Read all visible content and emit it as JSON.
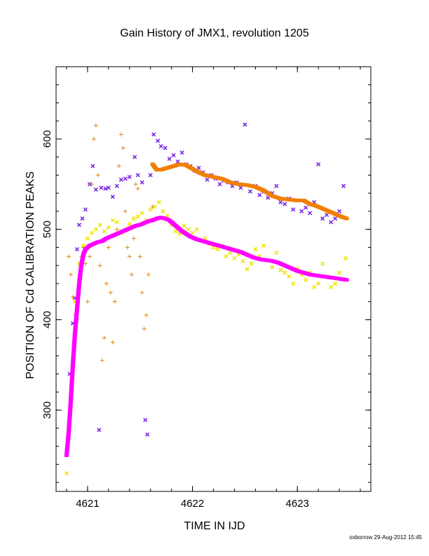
{
  "chart_data": {
    "type": "scatter",
    "title": "Gain History of JMX1, revolution 1205",
    "xlabel": "TIME IN IJD",
    "ylabel": "POSITION OF Cd CALIBRATION PEAKS",
    "xlim": [
      4620.7,
      4623.7
    ],
    "ylim": [
      210,
      680
    ],
    "xticks": [
      4621,
      4622,
      4623
    ],
    "yticks": [
      300,
      400,
      500,
      600
    ],
    "grid": false,
    "legend": "none",
    "colors": {
      "purple": "#7a2be2",
      "orange": "#f07f00",
      "orange_cross": "#e08a10",
      "yellow": "#f0e600",
      "magenta": "#ff00ff"
    },
    "series": [
      {
        "color": "purple",
        "marker": "x",
        "points": [
          [
            4620.83,
            340
          ],
          [
            4620.86,
            396
          ],
          [
            4620.88,
            424
          ],
          [
            4620.9,
            478
          ],
          [
            4620.92,
            505
          ],
          [
            4620.95,
            512
          ],
          [
            4620.98,
            522
          ],
          [
            4621.02,
            550
          ],
          [
            4621.05,
            570
          ],
          [
            4621.08,
            544
          ],
          [
            4621.11,
            278
          ],
          [
            4621.13,
            546
          ],
          [
            4621.17,
            545
          ],
          [
            4621.2,
            546
          ],
          [
            4621.24,
            536
          ],
          [
            4621.28,
            548
          ],
          [
            4621.32,
            555
          ],
          [
            4621.36,
            556
          ],
          [
            4621.4,
            558
          ],
          [
            4621.45,
            580
          ],
          [
            4621.48,
            560
          ],
          [
            4621.52,
            552
          ],
          [
            4621.55,
            289
          ],
          [
            4621.57,
            273
          ],
          [
            4621.6,
            560
          ],
          [
            4621.63,
            605
          ],
          [
            4621.67,
            598
          ],
          [
            4621.7,
            592
          ],
          [
            4621.74,
            590
          ],
          [
            4621.78,
            578
          ],
          [
            4621.82,
            582
          ],
          [
            4621.86,
            575
          ],
          [
            4621.9,
            585
          ],
          [
            4621.94,
            572
          ],
          [
            4621.98,
            570
          ],
          [
            4622.02,
            565
          ],
          [
            4622.06,
            568
          ],
          [
            4622.1,
            563
          ],
          [
            4622.14,
            555
          ],
          [
            4622.18,
            560
          ],
          [
            4622.22,
            556
          ],
          [
            4622.26,
            550
          ],
          [
            4622.3,
            554
          ],
          [
            4622.34,
            552
          ],
          [
            4622.38,
            548
          ],
          [
            4622.42,
            552
          ],
          [
            4622.46,
            546
          ],
          [
            4622.5,
            616
          ],
          [
            4622.55,
            542
          ],
          [
            4622.6,
            548
          ],
          [
            4622.64,
            538
          ],
          [
            4622.68,
            542
          ],
          [
            4622.72,
            535
          ],
          [
            4622.76,
            540
          ],
          [
            4622.8,
            548
          ],
          [
            4622.84,
            530
          ],
          [
            4622.88,
            528
          ],
          [
            4622.92,
            534
          ],
          [
            4622.96,
            522
          ],
          [
            4623.0,
            532
          ],
          [
            4623.04,
            520
          ],
          [
            4623.08,
            524
          ],
          [
            4623.12,
            518
          ],
          [
            4623.16,
            530
          ],
          [
            4623.2,
            572
          ],
          [
            4623.24,
            512
          ],
          [
            4623.28,
            516
          ],
          [
            4623.32,
            508
          ],
          [
            4623.36,
            512
          ],
          [
            4623.4,
            520
          ],
          [
            4623.44,
            548
          ]
        ]
      },
      {
        "color": "orange",
        "marker": "thick-line",
        "points": [
          [
            4621.62,
            572
          ],
          [
            4621.66,
            566
          ],
          [
            4621.7,
            566
          ],
          [
            4621.76,
            568
          ],
          [
            4621.82,
            570
          ],
          [
            4621.88,
            572
          ],
          [
            4621.94,
            571
          ],
          [
            4622.0,
            567
          ],
          [
            4622.06,
            563
          ],
          [
            4622.12,
            560
          ],
          [
            4622.2,
            558
          ],
          [
            4622.28,
            556
          ],
          [
            4622.36,
            552
          ],
          [
            4622.44,
            550
          ],
          [
            4622.52,
            549
          ],
          [
            4622.6,
            547
          ],
          [
            4622.68,
            543
          ],
          [
            4622.76,
            537
          ],
          [
            4622.84,
            534
          ],
          [
            4622.92,
            533
          ],
          [
            4623.0,
            532
          ],
          [
            4623.06,
            532
          ],
          [
            4623.12,
            528
          ],
          [
            4623.18,
            526
          ],
          [
            4623.24,
            523
          ],
          [
            4623.3,
            520
          ],
          [
            4623.36,
            517
          ],
          [
            4623.42,
            514
          ],
          [
            4623.47,
            512
          ]
        ]
      },
      {
        "color": "orange_cross",
        "marker": "+",
        "points": [
          [
            4620.82,
            470
          ],
          [
            4620.84,
            450
          ],
          [
            4620.86,
            425
          ],
          [
            4620.88,
            405
          ],
          [
            4620.9,
            400
          ],
          [
            4620.92,
            430
          ],
          [
            4620.94,
            470
          ],
          [
            4620.96,
            480
          ],
          [
            4620.98,
            462
          ],
          [
            4621.0,
            420
          ],
          [
            4621.02,
            470
          ],
          [
            4621.04,
            550
          ],
          [
            4621.06,
            600
          ],
          [
            4621.08,
            615
          ],
          [
            4621.1,
            560
          ],
          [
            4621.12,
            460
          ],
          [
            4621.14,
            355
          ],
          [
            4621.16,
            380
          ],
          [
            4621.18,
            440
          ],
          [
            4621.2,
            480
          ],
          [
            4621.22,
            430
          ],
          [
            4621.24,
            375
          ],
          [
            4621.26,
            420
          ],
          [
            4621.28,
            500
          ],
          [
            4621.3,
            570
          ],
          [
            4621.32,
            605
          ],
          [
            4621.34,
            590
          ],
          [
            4621.36,
            520
          ],
          [
            4621.38,
            480
          ],
          [
            4621.4,
            470
          ],
          [
            4621.42,
            450
          ],
          [
            4621.44,
            490
          ],
          [
            4621.46,
            550
          ],
          [
            4621.48,
            545
          ],
          [
            4621.5,
            470
          ],
          [
            4621.52,
            430
          ],
          [
            4621.54,
            390
          ],
          [
            4621.56,
            405
          ],
          [
            4621.58,
            450
          ],
          [
            4621.6,
            510
          ],
          [
            4621.62,
            525
          ]
        ]
      },
      {
        "color": "yellow",
        "marker": "x",
        "points": [
          [
            4620.8,
            230
          ],
          [
            4620.84,
            300
          ],
          [
            4620.88,
            420
          ],
          [
            4620.92,
            462
          ],
          [
            4620.96,
            482
          ],
          [
            4621.0,
            490
          ],
          [
            4621.04,
            496
          ],
          [
            4621.08,
            500
          ],
          [
            4621.12,
            505
          ],
          [
            4621.16,
            498
          ],
          [
            4621.2,
            502
          ],
          [
            4621.24,
            510
          ],
          [
            4621.28,
            508
          ],
          [
            4621.32,
            496
          ],
          [
            4621.36,
            500
          ],
          [
            4621.4,
            506
          ],
          [
            4621.44,
            512
          ],
          [
            4621.48,
            514
          ],
          [
            4621.52,
            518
          ],
          [
            4621.56,
            510
          ],
          [
            4621.6,
            522
          ],
          [
            4621.64,
            525
          ],
          [
            4621.68,
            530
          ],
          [
            4621.72,
            520
          ],
          [
            4621.76,
            515
          ],
          [
            4621.8,
            505
          ],
          [
            4621.84,
            498
          ],
          [
            4621.88,
            495
          ],
          [
            4621.92,
            504
          ],
          [
            4621.96,
            500
          ],
          [
            4622.0,
            496
          ],
          [
            4622.04,
            500
          ],
          [
            4622.08,
            488
          ],
          [
            4622.12,
            490
          ],
          [
            4622.16,
            484
          ],
          [
            4622.2,
            480
          ],
          [
            4622.24,
            478
          ],
          [
            4622.28,
            482
          ],
          [
            4622.32,
            470
          ],
          [
            4622.36,
            474
          ],
          [
            4622.4,
            468
          ],
          [
            4622.44,
            472
          ],
          [
            4622.48,
            465
          ],
          [
            4622.52,
            456
          ],
          [
            4622.56,
            462
          ],
          [
            4622.6,
            478
          ],
          [
            4622.64,
            470
          ],
          [
            4622.68,
            482
          ],
          [
            4622.72,
            466
          ],
          [
            4622.76,
            458
          ],
          [
            4622.8,
            474
          ],
          [
            4622.84,
            455
          ],
          [
            4622.88,
            452
          ],
          [
            4622.92,
            448
          ],
          [
            4622.96,
            440
          ],
          [
            4623.0,
            456
          ],
          [
            4623.04,
            450
          ],
          [
            4623.08,
            444
          ],
          [
            4623.12,
            452
          ],
          [
            4623.16,
            436
          ],
          [
            4623.2,
            440
          ],
          [
            4623.24,
            462
          ],
          [
            4623.28,
            448
          ],
          [
            4623.32,
            436
          ],
          [
            4623.36,
            440
          ],
          [
            4623.4,
            452
          ],
          [
            4623.46,
            468
          ]
        ]
      },
      {
        "color": "magenta",
        "marker": "thick-line",
        "points": [
          [
            4620.8,
            250
          ],
          [
            4620.82,
            275
          ],
          [
            4620.84,
            310
          ],
          [
            4620.86,
            350
          ],
          [
            4620.88,
            385
          ],
          [
            4620.9,
            412
          ],
          [
            4620.92,
            440
          ],
          [
            4620.94,
            460
          ],
          [
            4620.96,
            472
          ],
          [
            4620.98,
            478
          ],
          [
            4621.02,
            482
          ],
          [
            4621.06,
            484
          ],
          [
            4621.1,
            486
          ],
          [
            4621.14,
            487
          ],
          [
            4621.18,
            490
          ],
          [
            4621.22,
            492
          ],
          [
            4621.26,
            494
          ],
          [
            4621.3,
            496
          ],
          [
            4621.34,
            498
          ],
          [
            4621.38,
            500
          ],
          [
            4621.42,
            502
          ],
          [
            4621.46,
            504
          ],
          [
            4621.5,
            505
          ],
          [
            4621.54,
            507
          ],
          [
            4621.58,
            509
          ],
          [
            4621.62,
            510
          ],
          [
            4621.66,
            512
          ],
          [
            4621.7,
            513
          ],
          [
            4621.74,
            512
          ],
          [
            4621.78,
            510
          ],
          [
            4621.82,
            506
          ],
          [
            4621.86,
            502
          ],
          [
            4621.9,
            498
          ],
          [
            4621.94,
            495
          ],
          [
            4621.98,
            492
          ],
          [
            4622.04,
            489
          ],
          [
            4622.1,
            487
          ],
          [
            4622.16,
            485
          ],
          [
            4622.22,
            483
          ],
          [
            4622.28,
            481
          ],
          [
            4622.34,
            479
          ],
          [
            4622.4,
            477
          ],
          [
            4622.46,
            475
          ],
          [
            4622.52,
            472
          ],
          [
            4622.58,
            469
          ],
          [
            4622.64,
            467
          ],
          [
            4622.7,
            466
          ],
          [
            4622.76,
            465
          ],
          [
            4622.82,
            463
          ],
          [
            4622.88,
            460
          ],
          [
            4622.94,
            457
          ],
          [
            4623.0,
            454
          ],
          [
            4623.06,
            452
          ],
          [
            4623.12,
            450
          ],
          [
            4623.18,
            449
          ],
          [
            4623.24,
            448
          ],
          [
            4623.3,
            447
          ],
          [
            4623.36,
            446
          ],
          [
            4623.42,
            445
          ],
          [
            4623.47,
            444
          ]
        ]
      }
    ]
  },
  "footer": "oxborrow 29-Aug-2012 15:45"
}
